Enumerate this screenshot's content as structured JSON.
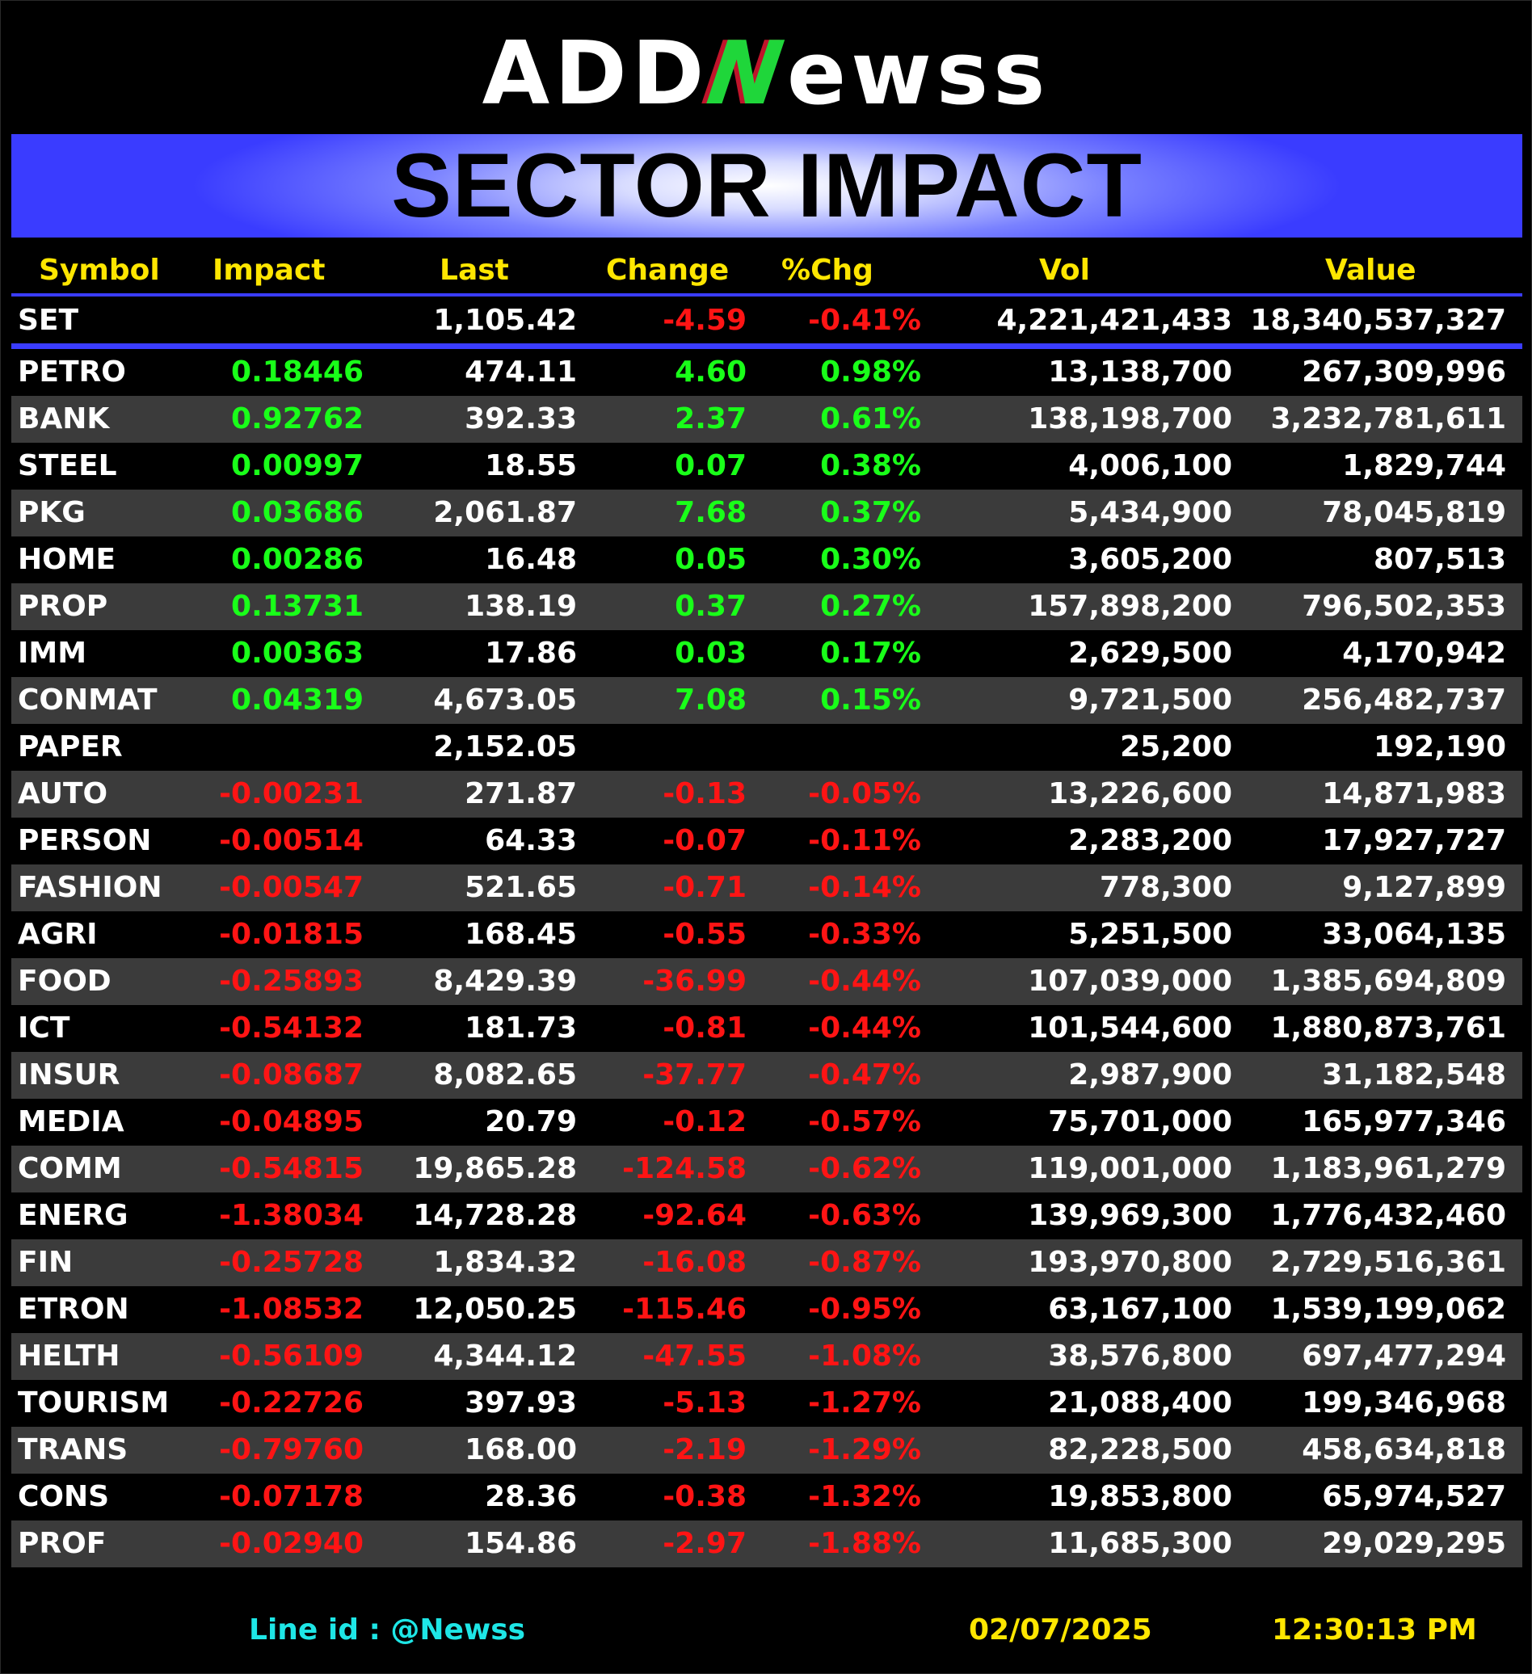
{
  "brand": {
    "logo_prefix": "ADD",
    "logo_n": "N",
    "logo_suffix": "ewss"
  },
  "banner": {
    "title": "SECTOR IMPACT"
  },
  "headers": {
    "symbol": "Symbol",
    "impact": "Impact",
    "last": "Last",
    "change": "Change",
    "pct": "%Chg",
    "vol": "Vol",
    "value": "Value"
  },
  "index": {
    "symbol": "SET",
    "impact": "",
    "last": "1,105.42",
    "change": "-4.59",
    "pct": "-0.41%",
    "vol": "4,221,421,433",
    "value": "18,340,537,327",
    "dir": "neg"
  },
  "rows": [
    {
      "symbol": "PETRO",
      "impact": "0.18446",
      "last": "474.11",
      "change": "4.60",
      "pct": "0.98%",
      "vol": "13,138,700",
      "value": "267,309,996",
      "dir": "pos"
    },
    {
      "symbol": "BANK",
      "impact": "0.92762",
      "last": "392.33",
      "change": "2.37",
      "pct": "0.61%",
      "vol": "138,198,700",
      "value": "3,232,781,611",
      "dir": "pos"
    },
    {
      "symbol": "STEEL",
      "impact": "0.00997",
      "last": "18.55",
      "change": "0.07",
      "pct": "0.38%",
      "vol": "4,006,100",
      "value": "1,829,744",
      "dir": "pos"
    },
    {
      "symbol": "PKG",
      "impact": "0.03686",
      "last": "2,061.87",
      "change": "7.68",
      "pct": "0.37%",
      "vol": "5,434,900",
      "value": "78,045,819",
      "dir": "pos"
    },
    {
      "symbol": "HOME",
      "impact": "0.00286",
      "last": "16.48",
      "change": "0.05",
      "pct": "0.30%",
      "vol": "3,605,200",
      "value": "807,513",
      "dir": "pos"
    },
    {
      "symbol": "PROP",
      "impact": "0.13731",
      "last": "138.19",
      "change": "0.37",
      "pct": "0.27%",
      "vol": "157,898,200",
      "value": "796,502,353",
      "dir": "pos"
    },
    {
      "symbol": "IMM",
      "impact": "0.00363",
      "last": "17.86",
      "change": "0.03",
      "pct": "0.17%",
      "vol": "2,629,500",
      "value": "4,170,942",
      "dir": "pos"
    },
    {
      "symbol": "CONMAT",
      "impact": "0.04319",
      "last": "4,673.05",
      "change": "7.08",
      "pct": "0.15%",
      "vol": "9,721,500",
      "value": "256,482,737",
      "dir": "pos"
    },
    {
      "symbol": "PAPER",
      "impact": "",
      "last": "2,152.05",
      "change": "",
      "pct": "",
      "vol": "25,200",
      "value": "192,190",
      "dir": "flat"
    },
    {
      "symbol": "AUTO",
      "impact": "-0.00231",
      "last": "271.87",
      "change": "-0.13",
      "pct": "-0.05%",
      "vol": "13,226,600",
      "value": "14,871,983",
      "dir": "neg"
    },
    {
      "symbol": "PERSON",
      "impact": "-0.00514",
      "last": "64.33",
      "change": "-0.07",
      "pct": "-0.11%",
      "vol": "2,283,200",
      "value": "17,927,727",
      "dir": "neg"
    },
    {
      "symbol": "FASHION",
      "impact": "-0.00547",
      "last": "521.65",
      "change": "-0.71",
      "pct": "-0.14%",
      "vol": "778,300",
      "value": "9,127,899",
      "dir": "neg"
    },
    {
      "symbol": "AGRI",
      "impact": "-0.01815",
      "last": "168.45",
      "change": "-0.55",
      "pct": "-0.33%",
      "vol": "5,251,500",
      "value": "33,064,135",
      "dir": "neg"
    },
    {
      "symbol": "FOOD",
      "impact": "-0.25893",
      "last": "8,429.39",
      "change": "-36.99",
      "pct": "-0.44%",
      "vol": "107,039,000",
      "value": "1,385,694,809",
      "dir": "neg"
    },
    {
      "symbol": "ICT",
      "impact": "-0.54132",
      "last": "181.73",
      "change": "-0.81",
      "pct": "-0.44%",
      "vol": "101,544,600",
      "value": "1,880,873,761",
      "dir": "neg"
    },
    {
      "symbol": "INSUR",
      "impact": "-0.08687",
      "last": "8,082.65",
      "change": "-37.77",
      "pct": "-0.47%",
      "vol": "2,987,900",
      "value": "31,182,548",
      "dir": "neg"
    },
    {
      "symbol": "MEDIA",
      "impact": "-0.04895",
      "last": "20.79",
      "change": "-0.12",
      "pct": "-0.57%",
      "vol": "75,701,000",
      "value": "165,977,346",
      "dir": "neg"
    },
    {
      "symbol": "COMM",
      "impact": "-0.54815",
      "last": "19,865.28",
      "change": "-124.58",
      "pct": "-0.62%",
      "vol": "119,001,000",
      "value": "1,183,961,279",
      "dir": "neg"
    },
    {
      "symbol": "ENERG",
      "impact": "-1.38034",
      "last": "14,728.28",
      "change": "-92.64",
      "pct": "-0.63%",
      "vol": "139,969,300",
      "value": "1,776,432,460",
      "dir": "neg"
    },
    {
      "symbol": "FIN",
      "impact": "-0.25728",
      "last": "1,834.32",
      "change": "-16.08",
      "pct": "-0.87%",
      "vol": "193,970,800",
      "value": "2,729,516,361",
      "dir": "neg"
    },
    {
      "symbol": "ETRON",
      "impact": "-1.08532",
      "last": "12,050.25",
      "change": "-115.46",
      "pct": "-0.95%",
      "vol": "63,167,100",
      "value": "1,539,199,062",
      "dir": "neg"
    },
    {
      "symbol": "HELTH",
      "impact": "-0.56109",
      "last": "4,344.12",
      "change": "-47.55",
      "pct": "-1.08%",
      "vol": "38,576,800",
      "value": "697,477,294",
      "dir": "neg"
    },
    {
      "symbol": "TOURISM",
      "impact": "-0.22726",
      "last": "397.93",
      "change": "-5.13",
      "pct": "-1.27%",
      "vol": "21,088,400",
      "value": "199,346,968",
      "dir": "neg"
    },
    {
      "symbol": "TRANS",
      "impact": "-0.79760",
      "last": "168.00",
      "change": "-2.19",
      "pct": "-1.29%",
      "vol": "82,228,500",
      "value": "458,634,818",
      "dir": "neg"
    },
    {
      "symbol": "CONS",
      "impact": "-0.07178",
      "last": "28.36",
      "change": "-0.38",
      "pct": "-1.32%",
      "vol": "19,853,800",
      "value": "65,974,527",
      "dir": "neg"
    },
    {
      "symbol": "PROF",
      "impact": "-0.02940",
      "last": "154.86",
      "change": "-2.97",
      "pct": "-1.88%",
      "vol": "11,685,300",
      "value": "29,029,295",
      "dir": "neg"
    }
  ],
  "footer": {
    "line_id": "Line id  : @Newss",
    "date": "02/07/2025",
    "time": "12:30:13 PM"
  },
  "colors": {
    "positive": "#19ff19",
    "negative": "#ff1414",
    "header": "#ffe600",
    "accent": "#3a3cff",
    "footer_cyan": "#1ee6e6",
    "footer_yellow": "#ffe600"
  }
}
